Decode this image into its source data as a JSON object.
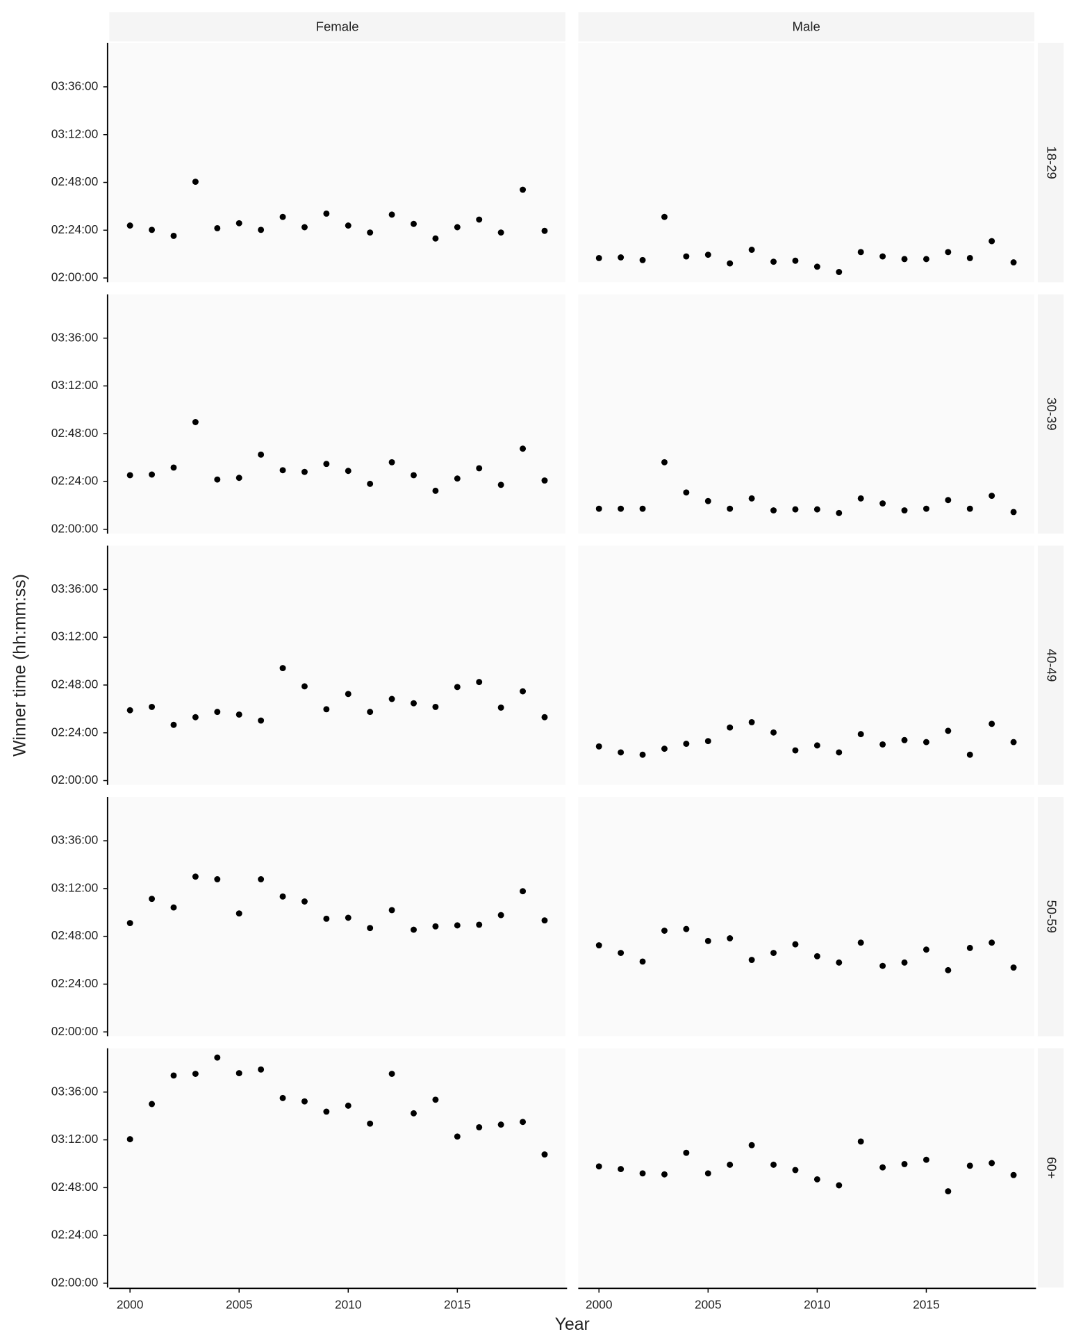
{
  "chart_data": {
    "type": "scatter",
    "x_label": "Year",
    "y_label": "Winner time (hh:mm:ss)",
    "columns": [
      "Female",
      "Male"
    ],
    "rows": [
      "18-29",
      "30-39",
      "40-49",
      "50-59",
      "60+"
    ],
    "color": "#000000",
    "x": [
      2000,
      2001,
      2002,
      2003,
      2004,
      2005,
      2006,
      2007,
      2008,
      2009,
      2010,
      2011,
      2012,
      2013,
      2014,
      2015,
      2016,
      2017,
      2018,
      2019
    ],
    "xlim": [
      1999.05,
      2019.95
    ],
    "xticks": [
      2000,
      2005,
      2010,
      2015
    ],
    "ylim": [
      7070,
      14280
    ],
    "yticks": [
      {
        "value": 7200,
        "label": "02:00:00"
      },
      {
        "value": 8640,
        "label": "02:24:00"
      },
      {
        "value": 10080,
        "label": "02:48:00"
      },
      {
        "value": 11520,
        "label": "03:12:00"
      },
      {
        "value": 12960,
        "label": "03:36:00"
      }
    ],
    "panels": [
      [
        [
          8780,
          8650,
          8470,
          10100,
          8700,
          8850,
          8650,
          9040,
          8730,
          9140,
          8780,
          8570,
          9110,
          8830,
          8390,
          8730,
          8960,
          8570,
          9860,
          8620
        ],
        [
          7800,
          7820,
          7740,
          9040,
          7850,
          7900,
          7640,
          8050,
          7690,
          7720,
          7540,
          7380,
          7980,
          7850,
          7770,
          7770,
          7980,
          7800,
          8310,
          7670
        ]
      ],
      [
        [
          8830,
          8850,
          9060,
          10430,
          8700,
          8750,
          9450,
          8980,
          8930,
          9170,
          8960,
          8570,
          9220,
          8830,
          8360,
          8730,
          9040,
          8540,
          9630,
          8670
        ],
        [
          7820,
          7820,
          7820,
          9220,
          8310,
          8050,
          7820,
          8130,
          7770,
          7800,
          7800,
          7690,
          8130,
          7980,
          7770,
          7820,
          8080,
          7820,
          8210,
          7720
        ]
      ],
      [
        [
          9320,
          9420,
          8880,
          9110,
          9270,
          9190,
          9010,
          10590,
          10040,
          9350,
          9810,
          9270,
          9660,
          9530,
          9420,
          10020,
          10170,
          9400,
          9890,
          9110
        ],
        [
          8230,
          8050,
          7980,
          8160,
          8310,
          8390,
          8800,
          8960,
          8650,
          8110,
          8260,
          8050,
          8600,
          8290,
          8420,
          8360,
          8700,
          7980,
          8910,
          8360
        ]
      ],
      [
        [
          10480,
          11210,
          10950,
          11880,
          11800,
          10770,
          11800,
          11280,
          11130,
          10610,
          10640,
          10330,
          10870,
          10280,
          10380,
          10410,
          10430,
          10720,
          11440,
          10560
        ],
        [
          9810,
          9580,
          9320,
          10250,
          10300,
          9940,
          10020,
          9370,
          9580,
          9840,
          9480,
          9290,
          9890,
          9190,
          9290,
          9680,
          9060,
          9730,
          9890,
          9140
        ]
      ],
      [
        [
          11540,
          12600,
          13460,
          13510,
          14000,
          13530,
          13640,
          12780,
          12680,
          12370,
          12550,
          12010,
          13510,
          12320,
          12730,
          11620,
          11900,
          11980,
          12060,
          11080
        ],
        [
          10720,
          10640,
          10510,
          10480,
          11130,
          10510,
          10770,
          11360,
          10770,
          10610,
          10330,
          10150,
          11470,
          10690,
          10790,
          10920,
          9970,
          10740,
          10820,
          10460
        ]
      ]
    ]
  }
}
